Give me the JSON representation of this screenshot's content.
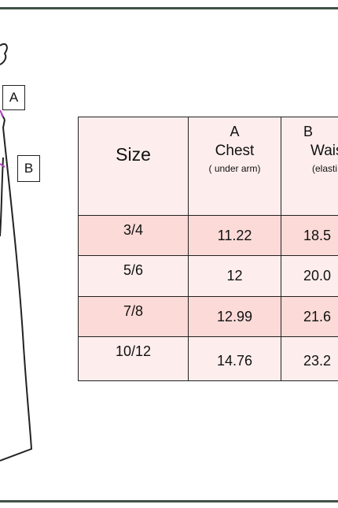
{
  "drawing": {
    "labels": [
      "A",
      "B"
    ]
  },
  "table": {
    "header": [
      {
        "title": "Size"
      },
      {
        "letter": "A",
        "name": "Chest",
        "note": "( under arm)"
      },
      {
        "letter": "B",
        "name": "Wais",
        "note": "(elasti"
      }
    ],
    "rows": [
      [
        "3/4",
        "11.22",
        "18.5"
      ],
      [
        "5/6",
        "12",
        "20.0"
      ],
      [
        "7/8",
        "12.99",
        "21.6"
      ],
      [
        "10/12",
        "14.76",
        "23.2"
      ]
    ]
  }
}
